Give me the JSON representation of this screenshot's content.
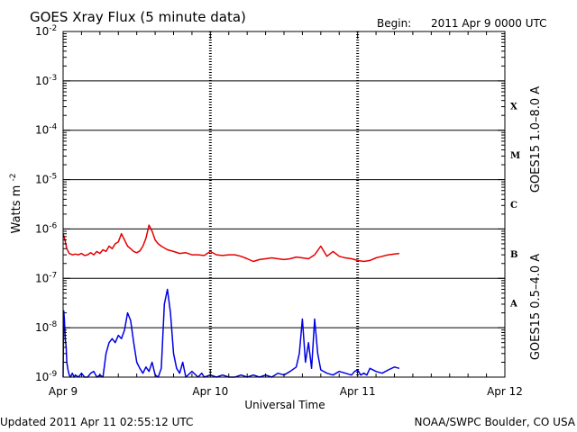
{
  "title": "GOES Xray Flux (5 minute data)",
  "begin_label": "Begin:",
  "begin_value": "2011 Apr 9 0000 UTC",
  "footer_left": "Updated 2011 Apr 11 02:55:12 UTC",
  "footer_right": "NOAA/SWPC Boulder, CO USA",
  "colors": {
    "long_channel": "#e60000",
    "short_channel": "#0000e6",
    "axis": "#000000"
  },
  "chart_data": {
    "type": "line",
    "title": "GOES Xray Flux (5 minute data)",
    "xlabel": "Universal Time",
    "ylabel": "Watts m",
    "ylabel_sup": "-2",
    "y_scale": "log",
    "ylim": [
      1e-09,
      0.01
    ],
    "xlim": [
      0,
      72
    ],
    "x_unit": "hours since 2011 Apr 9 0000 UTC",
    "x_ticks": [
      {
        "label": "Apr 9",
        "value": 0
      },
      {
        "label": "Apr 10",
        "value": 24
      },
      {
        "label": "Apr 11",
        "value": 48
      },
      {
        "label": "Apr 12",
        "value": 72
      }
    ],
    "y_ticks": [
      {
        "mantissa": "10",
        "exp": "-9",
        "value": 1e-09
      },
      {
        "mantissa": "10",
        "exp": "-8",
        "value": 1e-08
      },
      {
        "mantissa": "10",
        "exp": "-7",
        "value": 1e-07
      },
      {
        "mantissa": "10",
        "exp": "-6",
        "value": 1e-06
      },
      {
        "mantissa": "10",
        "exp": "-5",
        "value": 1e-05
      },
      {
        "mantissa": "10",
        "exp": "-4",
        "value": 0.0001
      },
      {
        "mantissa": "10",
        "exp": "-3",
        "value": 0.001
      },
      {
        "mantissa": "10",
        "exp": "-2",
        "value": 0.01
      }
    ],
    "flare_classes": [
      {
        "label": "X",
        "value": 0.000316
      },
      {
        "label": "M",
        "value": 3.16e-05
      },
      {
        "label": "C",
        "value": 3.16e-06
      },
      {
        "label": "B",
        "value": 3.16e-07
      },
      {
        "label": "A",
        "value": 3.16e-08
      }
    ],
    "grid": "horizontal lines at each decade; dotted vertical lines at each day",
    "series": [
      {
        "name": "GOES15 1.0–8.0 A",
        "color": "#e60000",
        "x": [
          0,
          0.3,
          0.6,
          1.0,
          1.5,
          2.0,
          2.5,
          3.0,
          3.5,
          4.0,
          4.5,
          5.0,
          5.5,
          6.0,
          6.5,
          7.0,
          7.5,
          8.0,
          8.5,
          9.0,
          9.5,
          10.0,
          10.5,
          11.0,
          11.5,
          12.0,
          12.5,
          13.0,
          13.5,
          14.0,
          14.5,
          15.0,
          15.5,
          16.0,
          17.0,
          18.0,
          19.0,
          20.0,
          21.0,
          22.0,
          23.0,
          24.0,
          25.0,
          26.0,
          27.0,
          28.0,
          29.0,
          30.0,
          31.0,
          32.0,
          33.0,
          34.0,
          35.0,
          36.0,
          37.0,
          38.0,
          39.0,
          40.0,
          41.0,
          42.0,
          43.0,
          44.0,
          45.0,
          46.0,
          47.0,
          48.0,
          49.0,
          50.0,
          51.0,
          52.0,
          53.0,
          54.0,
          54.8
        ],
        "values": [
          8e-07,
          6e-07,
          4e-07,
          3.2e-07,
          3e-07,
          3.1e-07,
          3e-07,
          3.2e-07,
          2.9e-07,
          3e-07,
          3.3e-07,
          3e-07,
          3.5e-07,
          3.2e-07,
          3.8e-07,
          3.5e-07,
          4.5e-07,
          4e-07,
          5e-07,
          5.5e-07,
          8e-07,
          6e-07,
          4.5e-07,
          4e-07,
          3.5e-07,
          3.3e-07,
          3.6e-07,
          4.5e-07,
          6.5e-07,
          1.2e-06,
          9e-07,
          6e-07,
          5e-07,
          4.5e-07,
          3.8e-07,
          3.5e-07,
          3.2e-07,
          3.3e-07,
          3e-07,
          3e-07,
          2.9e-07,
          3.5e-07,
          3e-07,
          2.9e-07,
          3e-07,
          3e-07,
          2.8e-07,
          2.5e-07,
          2.2e-07,
          2.4e-07,
          2.5e-07,
          2.6e-07,
          2.5e-07,
          2.4e-07,
          2.5e-07,
          2.7e-07,
          2.6e-07,
          2.5e-07,
          3e-07,
          4.5e-07,
          2.8e-07,
          3.5e-07,
          2.8e-07,
          2.6e-07,
          2.5e-07,
          2.3e-07,
          2.2e-07,
          2.3e-07,
          2.6e-07,
          2.8e-07,
          3e-07,
          3.1e-07,
          3.2e-07
        ]
      },
      {
        "name": "GOES15 0.5–4.0 A",
        "color": "#0000e6",
        "x": [
          0,
          0.1,
          0.2,
          0.35,
          0.5,
          0.6,
          0.8,
          1.0,
          1.2,
          1.5,
          1.8,
          2.0,
          2.5,
          3.0,
          3.5,
          4.0,
          4.5,
          5.0,
          5.5,
          6.0,
          6.5,
          7.0,
          7.5,
          8.0,
          8.5,
          9.0,
          9.5,
          10.0,
          10.5,
          11.0,
          11.5,
          12.0,
          12.5,
          13.0,
          13.5,
          14.0,
          14.5,
          15.0,
          15.5,
          16.0,
          16.5,
          17.0,
          17.5,
          18.0,
          18.5,
          19.0,
          19.5,
          20.0,
          21.0,
          22.0,
          22.6,
          23.0,
          24.0,
          25.0,
          26.0,
          27.0,
          28.0,
          29.0,
          30.0,
          31.0,
          32.0,
          33.0,
          34.0,
          35.0,
          36.0,
          37.0,
          38.0,
          38.5,
          39.0,
          39.5,
          40.0,
          40.5,
          41.0,
          41.5,
          42.0,
          43.0,
          44.0,
          45.0,
          46.0,
          47.0,
          47.5,
          48.0,
          48.5,
          49.0,
          49.5,
          50.0,
          51.0,
          52.0,
          53.0,
          54.0,
          54.8
        ],
        "values": [
          1e-09,
          2.2e-08,
          1.5e-08,
          6e-09,
          4e-09,
          2e-09,
          1.4e-09,
          1.1e-09,
          1e-09,
          1.2e-09,
          1e-09,
          1.1e-09,
          1e-09,
          1.2e-09,
          1e-09,
          1e-09,
          1.2e-09,
          1.3e-09,
          1e-09,
          1.1e-09,
          1e-09,
          3e-09,
          5e-09,
          6e-09,
          5e-09,
          7e-09,
          6e-09,
          9e-09,
          2e-08,
          1.4e-08,
          5e-09,
          2e-09,
          1.5e-09,
          1.2e-09,
          1.6e-09,
          1.3e-09,
          2e-09,
          1.1e-09,
          1e-09,
          1.5e-09,
          3e-08,
          6e-08,
          2e-08,
          3e-09,
          1.5e-09,
          1.2e-09,
          2e-09,
          1e-09,
          1.3e-09,
          1e-09,
          1.2e-09,
          1e-09,
          1.1e-09,
          1e-09,
          1.1e-09,
          1e-09,
          1e-09,
          1.1e-09,
          1e-09,
          1.1e-09,
          1e-09,
          1.1e-09,
          1e-09,
          1.2e-09,
          1.1e-09,
          1.3e-09,
          1.6e-09,
          3e-09,
          1.5e-08,
          2e-09,
          5e-09,
          1.5e-09,
          1.5e-08,
          3e-09,
          1.4e-09,
          1.2e-09,
          1.1e-09,
          1.3e-09,
          1.2e-09,
          1.1e-09,
          1.3e-09,
          1.4e-09,
          1.1e-09,
          1.2e-09,
          1.1e-09,
          1.5e-09,
          1.3e-09,
          1.2e-09,
          1.4e-09,
          1.6e-09,
          1.5e-09
        ]
      }
    ]
  }
}
